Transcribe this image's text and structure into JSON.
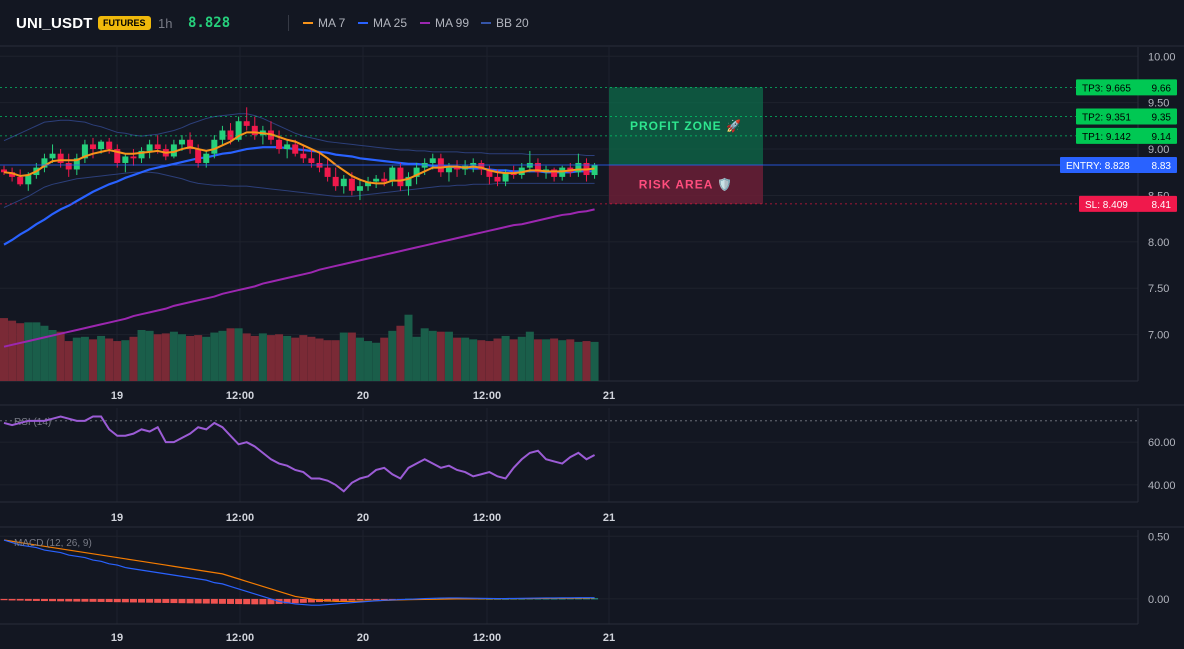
{
  "header": {
    "symbol": "UNI_USDT",
    "badge": "FUTURES",
    "timeframe": "1h",
    "price": "8.828",
    "legend": [
      {
        "label": "MA 7",
        "color": "#f7931a"
      },
      {
        "label": "MA 25",
        "color": "#2962ff"
      },
      {
        "label": "MA 99",
        "color": "#9c27b0"
      },
      {
        "label": "BB 20",
        "color": "#3555a8"
      }
    ]
  },
  "colors": {
    "up": "#26d07c",
    "down": "#f0194c",
    "entry": "#2962ff",
    "tp": "#00e676",
    "sl": "#ff1744",
    "rsi": "#9c5cd6",
    "macd": "#2962ff",
    "signal": "#f57c00",
    "hist_neg": "#ef5350",
    "hist_pos": "#26a69a"
  },
  "chart_data": [
    {
      "type": "candlestick",
      "name": "price",
      "x_labels": [
        "19",
        "12:00",
        "20",
        "12:00",
        "21"
      ],
      "y_ticks": [
        "10.00",
        "9.50",
        "9.00",
        "8.50",
        "8.00",
        "7.50",
        "7.00"
      ],
      "ylim": [
        6.5,
        10.1
      ],
      "candles": [
        [
          8.78,
          8.82,
          8.72,
          8.75
        ],
        [
          8.75,
          8.8,
          8.65,
          8.7
        ],
        [
          8.7,
          8.78,
          8.6,
          8.62
        ],
        [
          8.62,
          8.75,
          8.55,
          8.72
        ],
        [
          8.72,
          8.85,
          8.68,
          8.8
        ],
        [
          8.8,
          8.95,
          8.75,
          8.9
        ],
        [
          8.9,
          9.05,
          8.85,
          8.95
        ],
        [
          8.95,
          9.0,
          8.8,
          8.85
        ],
        [
          8.85,
          8.95,
          8.7,
          8.78
        ],
        [
          8.78,
          8.95,
          8.72,
          8.9
        ],
        [
          8.9,
          9.1,
          8.85,
          9.05
        ],
        [
          9.05,
          9.12,
          8.9,
          9.0
        ],
        [
          9.0,
          9.1,
          8.95,
          9.08
        ],
        [
          9.08,
          9.12,
          8.95,
          9.0
        ],
        [
          9.0,
          9.05,
          8.8,
          8.85
        ],
        [
          8.85,
          8.95,
          8.75,
          8.92
        ],
        [
          8.92,
          9.0,
          8.82,
          8.9
        ],
        [
          8.9,
          9.02,
          8.85,
          8.98
        ],
        [
          8.98,
          9.1,
          8.9,
          9.05
        ],
        [
          9.05,
          9.15,
          8.95,
          9.0
        ],
        [
          9.0,
          9.05,
          8.88,
          8.92
        ],
        [
          8.92,
          9.1,
          8.9,
          9.05
        ],
        [
          9.05,
          9.15,
          8.98,
          9.1
        ],
        [
          9.1,
          9.18,
          8.95,
          9.0
        ],
        [
          9.0,
          9.05,
          8.8,
          8.85
        ],
        [
          8.85,
          8.98,
          8.8,
          8.95
        ],
        [
          8.95,
          9.15,
          8.9,
          9.1
        ],
        [
          9.1,
          9.25,
          9.05,
          9.2
        ],
        [
          9.2,
          9.28,
          9.05,
          9.1
        ],
        [
          9.1,
          9.35,
          9.08,
          9.3
        ],
        [
          9.3,
          9.45,
          9.2,
          9.25
        ],
        [
          9.25,
          9.35,
          9.1,
          9.15
        ],
        [
          9.15,
          9.25,
          9.05,
          9.2
        ],
        [
          9.2,
          9.3,
          9.05,
          9.1
        ],
        [
          9.1,
          9.2,
          8.95,
          9.0
        ],
        [
          9.0,
          9.1,
          8.9,
          9.05
        ],
        [
          9.05,
          9.1,
          8.92,
          8.95
        ],
        [
          8.95,
          9.05,
          8.85,
          8.9
        ],
        [
          8.9,
          9.0,
          8.8,
          8.85
        ],
        [
          8.85,
          8.95,
          8.75,
          8.8
        ],
        [
          8.8,
          8.9,
          8.65,
          8.7
        ],
        [
          8.7,
          8.8,
          8.55,
          8.6
        ],
        [
          8.6,
          8.72,
          8.52,
          8.68
        ],
        [
          8.68,
          8.75,
          8.5,
          8.55
        ],
        [
          8.55,
          8.68,
          8.45,
          8.6
        ],
        [
          8.6,
          8.7,
          8.55,
          8.65
        ],
        [
          8.65,
          8.72,
          8.58,
          8.68
        ],
        [
          8.68,
          8.75,
          8.6,
          8.65
        ],
        [
          8.65,
          8.82,
          8.6,
          8.8
        ],
        [
          8.8,
          8.85,
          8.55,
          8.6
        ],
        [
          8.6,
          8.75,
          8.5,
          8.7
        ],
        [
          8.7,
          8.85,
          8.62,
          8.8
        ],
        [
          8.8,
          8.9,
          8.72,
          8.85
        ],
        [
          8.85,
          8.95,
          8.78,
          8.9
        ],
        [
          8.9,
          8.95,
          8.7,
          8.75
        ],
        [
          8.75,
          8.85,
          8.65,
          8.8
        ],
        [
          8.8,
          8.88,
          8.7,
          8.78
        ],
        [
          8.78,
          8.88,
          8.72,
          8.82
        ],
        [
          8.82,
          8.9,
          8.75,
          8.85
        ],
        [
          8.85,
          8.88,
          8.72,
          8.78
        ],
        [
          8.78,
          8.82,
          8.62,
          8.7
        ],
        [
          8.7,
          8.78,
          8.6,
          8.65
        ],
        [
          8.65,
          8.78,
          8.6,
          8.75
        ],
        [
          8.75,
          8.82,
          8.68,
          8.72
        ],
        [
          8.72,
          8.85,
          8.68,
          8.8
        ],
        [
          8.8,
          8.98,
          8.75,
          8.85
        ],
        [
          8.85,
          8.9,
          8.7,
          8.75
        ],
        [
          8.75,
          8.82,
          8.68,
          8.78
        ],
        [
          8.78,
          8.8,
          8.65,
          8.7
        ],
        [
          8.7,
          8.82,
          8.66,
          8.8
        ],
        [
          8.8,
          8.85,
          8.7,
          8.75
        ],
        [
          8.75,
          8.95,
          8.7,
          8.85
        ],
        [
          8.85,
          8.9,
          8.65,
          8.72
        ],
        [
          8.72,
          8.85,
          8.68,
          8.83
        ]
      ],
      "volume": [
        74,
        71,
        68,
        69,
        69,
        65,
        60,
        58,
        47,
        51,
        52,
        49,
        53,
        50,
        47,
        48,
        52,
        60,
        59,
        55,
        56,
        58,
        55,
        53,
        54,
        52,
        57,
        59,
        62,
        62,
        56,
        53,
        56,
        54,
        55,
        53,
        51,
        54,
        52,
        50,
        48,
        48,
        57,
        57,
        51,
        47,
        45,
        51,
        59,
        65,
        78,
        52,
        62,
        59,
        58,
        58,
        51,
        51,
        49,
        48,
        47,
        50,
        53,
        49,
        52,
        58,
        49,
        49,
        50,
        48,
        49,
        46,
        47,
        46
      ],
      "ma7": [
        8.75,
        8.74,
        8.71,
        8.72,
        8.76,
        8.82,
        8.87,
        8.88,
        8.88,
        8.88,
        8.92,
        8.95,
        8.97,
        8.99,
        8.97,
        8.95,
        8.95,
        8.96,
        8.97,
        8.98,
        8.96,
        8.97,
        9.0,
        9.02,
        9.0,
        8.98,
        9.0,
        9.04,
        9.08,
        9.14,
        9.18,
        9.18,
        9.17,
        9.16,
        9.13,
        9.1,
        9.08,
        9.04,
        9.0,
        8.96,
        8.9,
        8.83,
        8.77,
        8.71,
        8.67,
        8.64,
        8.63,
        8.63,
        8.66,
        8.66,
        8.68,
        8.72,
        8.76,
        8.8,
        8.8,
        8.81,
        8.81,
        8.8,
        8.81,
        8.8,
        8.77,
        8.75,
        8.74,
        8.74,
        8.75,
        8.77,
        8.77,
        8.76,
        8.76,
        8.76,
        8.77,
        8.78,
        8.78,
        8.79
      ],
      "ma25": [
        7.97,
        8.02,
        8.08,
        8.13,
        8.19,
        8.24,
        8.3,
        8.35,
        8.39,
        8.44,
        8.49,
        8.54,
        8.58,
        8.62,
        8.65,
        8.69,
        8.72,
        8.75,
        8.78,
        8.8,
        8.82,
        8.84,
        8.86,
        8.88,
        8.9,
        8.91,
        8.93,
        8.95,
        8.96,
        8.98,
        9.0,
        9.01,
        9.02,
        9.02,
        9.02,
        9.01,
        9.0,
        8.99,
        8.98,
        8.97,
        8.96,
        8.94,
        8.93,
        8.92,
        8.9,
        8.89,
        8.88,
        8.87,
        8.86,
        8.85,
        8.84,
        8.84,
        8.83,
        8.82,
        8.82,
        8.81,
        8.8,
        8.8,
        8.79,
        8.79,
        8.78,
        8.77,
        8.77,
        8.76,
        8.76,
        8.76,
        8.76,
        8.75,
        8.75,
        8.75,
        8.75,
        8.76,
        8.76,
        8.76
      ],
      "ma99": [
        6.87,
        6.89,
        6.91,
        6.93,
        6.95,
        6.97,
        6.99,
        7.01,
        7.03,
        7.05,
        7.07,
        7.09,
        7.11,
        7.13,
        7.15,
        7.17,
        7.2,
        7.22,
        7.24,
        7.26,
        7.28,
        7.31,
        7.33,
        7.35,
        7.37,
        7.39,
        7.41,
        7.44,
        7.46,
        7.48,
        7.5,
        7.52,
        7.55,
        7.57,
        7.59,
        7.61,
        7.63,
        7.65,
        7.67,
        7.7,
        7.72,
        7.74,
        7.76,
        7.78,
        7.8,
        7.82,
        7.84,
        7.86,
        7.88,
        7.9,
        7.92,
        7.94,
        7.96,
        7.98,
        8.0,
        8.02,
        8.04,
        8.06,
        8.08,
        8.1,
        8.12,
        8.14,
        8.16,
        8.18,
        8.19,
        8.21,
        8.23,
        8.25,
        8.27,
        8.29,
        8.3,
        8.32,
        8.33,
        8.35
      ],
      "bb_upper": [
        9.09,
        9.13,
        9.17,
        9.21,
        9.25,
        9.29,
        9.3,
        9.31,
        9.31,
        9.3,
        9.29,
        9.26,
        9.24,
        9.21,
        9.18,
        9.17,
        9.15,
        9.14,
        9.15,
        9.16,
        9.18,
        9.2,
        9.23,
        9.27,
        9.3,
        9.33,
        9.35,
        9.36,
        9.37,
        9.38,
        9.38,
        9.36,
        9.33,
        9.29,
        9.25,
        9.21,
        9.17,
        9.14,
        9.12,
        9.1,
        9.08,
        9.07,
        9.06,
        9.05,
        9.04,
        9.03,
        9.02,
        9.01,
        9.0,
        8.99,
        8.99,
        8.98,
        8.98,
        8.97,
        8.97,
        8.97,
        8.97,
        8.96,
        8.96,
        8.96,
        8.95,
        8.95,
        8.95,
        8.95,
        8.95,
        8.94,
        8.94,
        8.94,
        8.94,
        8.94,
        8.94,
        8.94,
        8.93,
        8.93
      ],
      "bb_lower": [
        8.37,
        8.41,
        8.45,
        8.49,
        8.54,
        8.59,
        8.62,
        8.64,
        8.66,
        8.68,
        8.69,
        8.7,
        8.71,
        8.72,
        8.73,
        8.74,
        8.75,
        8.75,
        8.75,
        8.74,
        8.72,
        8.7,
        8.68,
        8.65,
        8.63,
        8.62,
        8.61,
        8.61,
        8.6,
        8.6,
        8.6,
        8.59,
        8.58,
        8.57,
        8.56,
        8.55,
        8.54,
        8.53,
        8.52,
        8.51,
        8.5,
        8.49,
        8.49,
        8.49,
        8.5,
        8.51,
        8.52,
        8.53,
        8.54,
        8.55,
        8.56,
        8.57,
        8.58,
        8.59,
        8.6,
        8.6,
        8.61,
        8.61,
        8.62,
        8.62,
        8.62,
        8.63,
        8.63,
        8.63,
        8.63,
        8.63,
        8.63,
        8.63,
        8.63,
        8.63,
        8.63,
        8.63,
        8.63,
        8.63
      ],
      "levels": [
        {
          "key": "tp3",
          "label": "TP3: 9.665",
          "value": 9.665,
          "axis": "9.66",
          "kind": "tp"
        },
        {
          "key": "tp2",
          "label": "TP2: 9.351",
          "value": 9.351,
          "axis": "9.35",
          "kind": "tp"
        },
        {
          "key": "tp1",
          "label": "TP1: 9.142",
          "value": 9.142,
          "axis": "9.14",
          "kind": "tp"
        },
        {
          "key": "entry",
          "label": "ENTRY: 8.828",
          "value": 8.828,
          "axis": "8.83",
          "kind": "entry"
        },
        {
          "key": "sl",
          "label": "SL: 8.409",
          "value": 8.409,
          "axis": "8.41",
          "kind": "sl"
        }
      ],
      "zones": {
        "profit": "PROFIT ZONE 🚀",
        "risk": "RISK AREA 🛡️"
      }
    },
    {
      "type": "line",
      "name": "rsi",
      "label": "RSI (14)",
      "x_labels": [
        "19",
        "12:00",
        "20",
        "12:00",
        "21"
      ],
      "y_ticks": [
        "60.00",
        "40.00"
      ],
      "ylim": [
        32,
        76
      ],
      "overbought": 70,
      "values": [
        69,
        68,
        69,
        70,
        70,
        70,
        71,
        72,
        71,
        70,
        70,
        72,
        72,
        66,
        63,
        63,
        64,
        66,
        65,
        67,
        60,
        60,
        62,
        64,
        67,
        66,
        69,
        67,
        63,
        59,
        60,
        58,
        55,
        52,
        50,
        49,
        47,
        46,
        43,
        43,
        42,
        40,
        37,
        41,
        43,
        44,
        47,
        48,
        45,
        43,
        48,
        50,
        52,
        50,
        48,
        49,
        47,
        46,
        44,
        45,
        46,
        44,
        43,
        48,
        52,
        55,
        56,
        52,
        51,
        50,
        53,
        55,
        52,
        54
      ],
      "overbought_label": ""
    },
    {
      "type": "line",
      "name": "macd",
      "label": "MACD (12, 26, 9)",
      "x_labels": [
        "19",
        "12:00",
        "20",
        "12:00",
        "21"
      ],
      "y_ticks": [
        "0.50",
        "0.00"
      ],
      "ylim": [
        -0.2,
        0.55
      ],
      "macd": [
        0.47,
        0.45,
        0.43,
        0.42,
        0.41,
        0.39,
        0.38,
        0.37,
        0.35,
        0.34,
        0.33,
        0.31,
        0.3,
        0.28,
        0.27,
        0.25,
        0.24,
        0.23,
        0.22,
        0.21,
        0.2,
        0.19,
        0.18,
        0.17,
        0.16,
        0.15,
        0.13,
        0.12,
        0.1,
        0.08,
        0.06,
        0.04,
        0.02,
        0.0,
        -0.02,
        -0.03,
        -0.04,
        -0.045,
        -0.05,
        -0.05,
        -0.045,
        -0.04,
        -0.035,
        -0.03,
        -0.025,
        -0.02,
        -0.015,
        -0.01,
        -0.008,
        -0.005,
        -0.003,
        0.0,
        0.003,
        0.005,
        0.007,
        0.008,
        0.008,
        0.007,
        0.006,
        0.005,
        0.004,
        0.003,
        0.003,
        0.004,
        0.005,
        0.006,
        0.007,
        0.008,
        0.008,
        0.009,
        0.009,
        0.01,
        0.01,
        0.01
      ],
      "signal": [
        0.47,
        0.46,
        0.45,
        0.44,
        0.43,
        0.42,
        0.41,
        0.4,
        0.39,
        0.38,
        0.37,
        0.36,
        0.35,
        0.34,
        0.33,
        0.32,
        0.31,
        0.3,
        0.29,
        0.28,
        0.27,
        0.26,
        0.25,
        0.24,
        0.23,
        0.22,
        0.21,
        0.2,
        0.18,
        0.16,
        0.14,
        0.12,
        0.1,
        0.08,
        0.06,
        0.04,
        0.02,
        0.01,
        0.0,
        -0.01,
        -0.015,
        -0.02,
        -0.02,
        -0.02,
        -0.018,
        -0.016,
        -0.014,
        -0.012,
        -0.01,
        -0.008,
        -0.006,
        -0.005,
        -0.004,
        -0.003,
        -0.002,
        -0.001,
        0.0,
        0.0,
        0.0,
        0.001,
        0.001,
        0.001,
        0.002,
        0.002,
        0.003,
        0.003,
        0.004,
        0.004,
        0.005,
        0.005,
        0.005,
        0.006,
        0.006,
        0.007
      ],
      "hist": [
        -0.01,
        -0.012,
        -0.013,
        -0.015,
        -0.016,
        -0.017,
        -0.018,
        -0.019,
        -0.02,
        -0.021,
        -0.022,
        -0.023,
        -0.024,
        -0.025,
        -0.026,
        -0.027,
        -0.028,
        -0.029,
        -0.03,
        -0.031,
        -0.032,
        -0.033,
        -0.034,
        -0.035,
        -0.036,
        -0.037,
        -0.038,
        -0.039,
        -0.04,
        -0.041,
        -0.042,
        -0.043,
        -0.043,
        -0.042,
        -0.04,
        -0.037,
        -0.034,
        -0.031,
        -0.028,
        -0.025,
        -0.022,
        -0.019,
        -0.016,
        -0.013,
        -0.01,
        -0.008,
        -0.006,
        -0.004,
        -0.003,
        -0.002,
        0.002,
        0.003,
        0.004,
        0.005,
        0.006,
        0.007,
        0.006,
        0.005,
        0.004,
        0.003,
        0.002,
        0.002,
        0.002,
        0.003,
        0.003,
        0.004,
        0.004,
        0.004,
        0.004,
        0.004,
        0.005,
        0.005,
        0.005,
        0.005
      ]
    }
  ]
}
